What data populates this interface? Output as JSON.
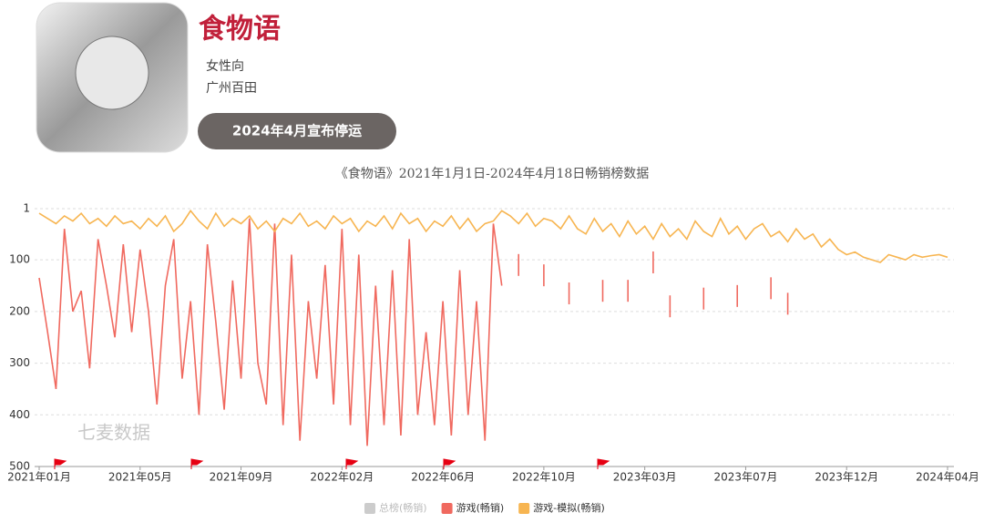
{
  "header": {
    "title": "食物语",
    "tags": [
      "女性向",
      "广州百田"
    ],
    "status": "2024年4月宣布停运"
  },
  "chart_data": {
    "type": "line",
    "title": "《食物语》2021年1月1日-2024年4月18日畅销榜数据",
    "watermark": "七麦数据",
    "categories": [
      "2021年01月",
      null,
      null,
      null,
      null,
      null,
      null,
      null,
      null,
      null,
      null,
      null,
      "2021年05月",
      null,
      null,
      null,
      null,
      null,
      null,
      null,
      null,
      null,
      null,
      null,
      "2021年09月",
      null,
      null,
      null,
      null,
      null,
      null,
      null,
      null,
      null,
      null,
      null,
      "2022年02月",
      null,
      null,
      null,
      null,
      null,
      null,
      null,
      null,
      null,
      null,
      null,
      "2022年06月",
      null,
      null,
      null,
      null,
      null,
      null,
      null,
      null,
      null,
      null,
      null,
      "2022年10月",
      null,
      null,
      null,
      null,
      null,
      null,
      null,
      null,
      null,
      null,
      null,
      "2023年03月",
      null,
      null,
      null,
      null,
      null,
      null,
      null,
      null,
      null,
      null,
      null,
      "2023年07月",
      null,
      null,
      null,
      null,
      null,
      null,
      null,
      null,
      null,
      null,
      null,
      "2023年12月",
      null,
      null,
      null,
      null,
      null,
      null,
      null,
      null,
      null,
      null,
      null,
      "2024年04月"
    ],
    "ylim": [
      1,
      500
    ],
    "yticks": [
      1,
      100,
      200,
      300,
      400,
      500
    ],
    "y_inverted": true,
    "grid": true,
    "series": [
      {
        "name": "总榜(畅销)",
        "color": "#cccccc",
        "hidden": true,
        "values": [
          null,
          null,
          null,
          null,
          null,
          null,
          null,
          null,
          null,
          null,
          null,
          null,
          null,
          null,
          null,
          null,
          null,
          null,
          null,
          null,
          null,
          null,
          null,
          null,
          null,
          null,
          null,
          null,
          null,
          null,
          null,
          null,
          null,
          null,
          null,
          null,
          null,
          null,
          null,
          null,
          null,
          null,
          null,
          null,
          null,
          null,
          null,
          null,
          null,
          null,
          null,
          null,
          null,
          null,
          null,
          null,
          null,
          null,
          null,
          null,
          null,
          null,
          null,
          null,
          null,
          null,
          null,
          null,
          null,
          null,
          null,
          null,
          null,
          null,
          null,
          null,
          null,
          null,
          null,
          null,
          null,
          null,
          null,
          null,
          null,
          null,
          null,
          null,
          null,
          null,
          null,
          null,
          null,
          null,
          null,
          null,
          null,
          null,
          null,
          null,
          null,
          null,
          null,
          null,
          null,
          null,
          null,
          null,
          null
        ]
      },
      {
        "name": "游戏(畅销)",
        "color": "#f0695f",
        "hidden": false,
        "values": [
          135,
          240,
          350,
          40,
          200,
          160,
          310,
          60,
          150,
          250,
          70,
          240,
          80,
          200,
          380,
          150,
          60,
          330,
          180,
          400,
          70,
          220,
          390,
          140,
          330,
          20,
          300,
          380,
          30,
          420,
          90,
          450,
          180,
          330,
          110,
          380,
          40,
          420,
          90,
          460,
          150,
          420,
          120,
          440,
          60,
          400,
          240,
          420,
          180,
          440,
          120,
          400,
          180,
          450,
          30,
          150,
          null,
          110,
          null,
          null,
          130,
          null,
          null,
          165,
          null,
          null,
          null,
          160,
          null,
          null,
          160,
          null,
          null,
          105,
          null,
          190,
          null,
          null,
          null,
          175,
          null,
          null,
          null,
          170,
          null,
          null,
          null,
          155,
          null,
          185,
          null,
          null,
          null,
          null,
          null,
          null,
          null,
          null,
          null,
          null,
          null,
          null,
          null,
          null,
          null,
          null,
          null,
          null,
          null
        ]
      },
      {
        "name": "游戏-模拟(畅销)",
        "color": "#f7b551",
        "hidden": false,
        "values": [
          10,
          20,
          30,
          15,
          25,
          10,
          30,
          20,
          35,
          15,
          30,
          25,
          40,
          20,
          35,
          15,
          45,
          30,
          5,
          25,
          40,
          10,
          35,
          20,
          30,
          15,
          40,
          25,
          45,
          20,
          30,
          10,
          35,
          25,
          40,
          15,
          30,
          20,
          45,
          25,
          35,
          15,
          40,
          10,
          30,
          20,
          45,
          25,
          35,
          15,
          40,
          20,
          45,
          30,
          25,
          5,
          15,
          30,
          10,
          35,
          20,
          25,
          40,
          15,
          40,
          50,
          20,
          45,
          30,
          55,
          25,
          50,
          35,
          60,
          30,
          55,
          40,
          60,
          25,
          45,
          55,
          20,
          50,
          35,
          60,
          40,
          30,
          55,
          45,
          65,
          40,
          60,
          50,
          75,
          60,
          80,
          90,
          85,
          95,
          100,
          105,
          90,
          95,
          100,
          90,
          95,
          92,
          90,
          95
        ]
      }
    ]
  }
}
